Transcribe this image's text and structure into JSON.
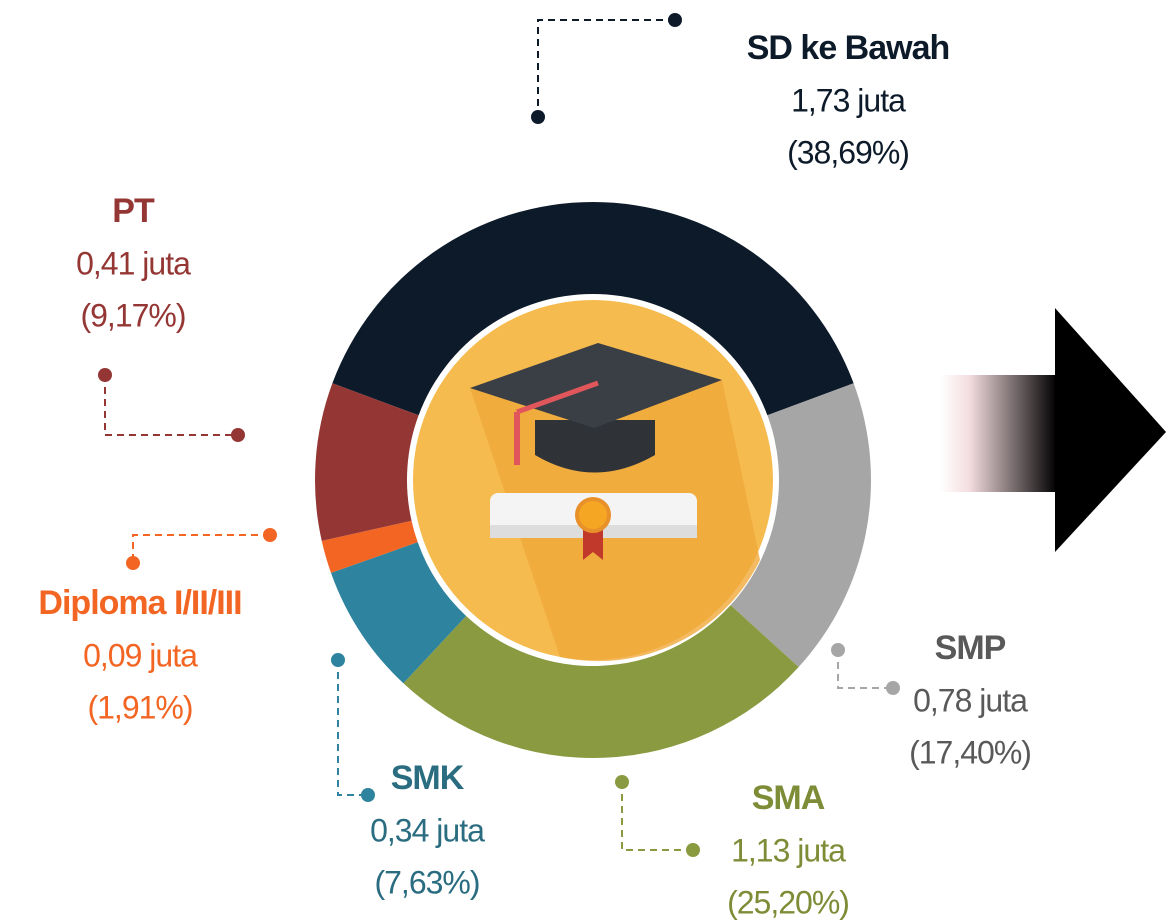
{
  "chart_data": {
    "type": "pie",
    "categories": [
      "SD ke Bawah",
      "SMP",
      "SMA",
      "SMK",
      "Diploma I/II/III",
      "PT"
    ],
    "values": [
      38.69,
      17.4,
      25.2,
      7.63,
      1.91,
      9.17
    ],
    "value_labels": [
      "(38,69%)",
      "(17,40%)",
      "(25,20%)",
      "(7,63%)",
      "(1,91%)",
      "(9,17%)"
    ],
    "amounts": [
      1.73,
      0.78,
      1.13,
      0.34,
      0.09,
      0.41
    ],
    "amount_labels": [
      "1,73 juta",
      "0,78 juta",
      "1,13 juta",
      "0,34 juta",
      "0,09 juta",
      "0,41 juta"
    ],
    "colors": [
      "#0d1a2a",
      "#a6a6a6",
      "#8a9a40",
      "#2e839e",
      "#f26522",
      "#943634"
    ],
    "label_colors": [
      "#0d1a2a",
      "#595959",
      "#7d8c36",
      "#2a6c80",
      "#f26522",
      "#943634"
    ]
  }
}
